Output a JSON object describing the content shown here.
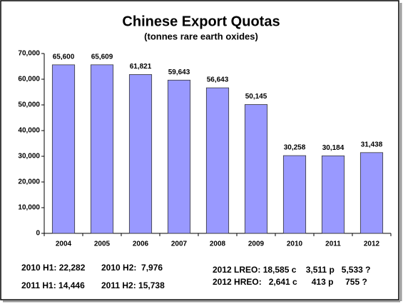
{
  "chart_data": {
    "type": "bar",
    "title": "Chinese Export Quotas",
    "subtitle": "(tonnes rare earth oxides)",
    "categories": [
      "2004",
      "2005",
      "2006",
      "2007",
      "2008",
      "2009",
      "2010",
      "2011",
      "2012"
    ],
    "values": [
      65600,
      65609,
      61821,
      59643,
      56643,
      50145,
      30258,
      30184,
      31438
    ],
    "value_labels": [
      "65,600",
      "65,609",
      "61,821",
      "59,643",
      "56,643",
      "50,145",
      "30,258",
      "30,184",
      "31,438"
    ],
    "color": "#9999ff",
    "ylim": [
      0,
      70000
    ],
    "yticks": [
      0,
      {
        "value": 10000,
        "label": "10,000"
      },
      {
        "value": 20000,
        "label": "20,000"
      },
      {
        "value": 30000,
        "label": "30,000"
      },
      {
        "value": 40000,
        "label": "40,000"
      },
      {
        "value": 50000,
        "label": "50,000"
      },
      {
        "value": 60000,
        "label": "60,000"
      },
      {
        "value": 70000,
        "label": "70,000"
      }
    ],
    "grid": false,
    "annotations": [
      "2010 H1: 22,282",
      "2010 H2:  7,976",
      "2011 H1: 14,446",
      "2011 H2: 15,738",
      "2012 LREO: 18,585 c    3,511 p   5,533 ?",
      "2012 HREO:   2,641 c      413 p     755 ?"
    ]
  }
}
